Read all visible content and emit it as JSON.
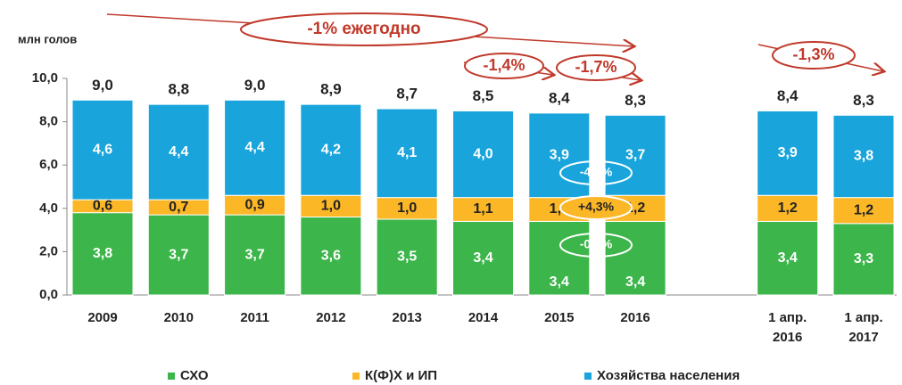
{
  "chart_data": {
    "type": "stacked_bar",
    "y_label": "млн голов",
    "categories": [
      "2009",
      "2010",
      "2011",
      "2012",
      "2013",
      "2014",
      "2015",
      "2016",
      null,
      "1 апр.\n2016",
      "1 апр.\n2017"
    ],
    "series": [
      {
        "name": "СХО",
        "color": "#3cb54a",
        "values": [
          3.8,
          3.7,
          3.7,
          3.6,
          3.5,
          3.4,
          3.4,
          3.4,
          null,
          3.4,
          3.3
        ],
        "value_labels": [
          "3,8",
          "3,7",
          "3,7",
          "3,6",
          "3,5",
          "3,4",
          "3,4",
          "3,4",
          null,
          "3,4",
          "3,3"
        ]
      },
      {
        "name": "К(Ф)Х и ИП",
        "color": "#fbb726",
        "values": [
          0.6,
          0.7,
          0.9,
          1.0,
          1.0,
          1.1,
          1.1,
          1.2,
          null,
          1.2,
          1.2
        ],
        "value_labels": [
          "0,6",
          "0,7",
          "0,9",
          "1,0",
          "1,0",
          "1,1",
          "1,1",
          "1,2",
          null,
          "1,2",
          "1,2"
        ]
      },
      {
        "name": "Хозяйства населения",
        "color": "#19a5db",
        "values": [
          4.6,
          4.4,
          4.4,
          4.2,
          4.1,
          4.0,
          3.9,
          3.7,
          null,
          3.9,
          3.8
        ],
        "value_labels": [
          "4,6",
          "4,4",
          "4,4",
          "4,2",
          "4,1",
          "4,0",
          "3,9",
          "3,7",
          null,
          "3,9",
          "3,8"
        ]
      }
    ],
    "totals": [
      9.0,
      8.8,
      9.0,
      8.9,
      8.7,
      8.5,
      8.4,
      8.3,
      null,
      8.4,
      8.3
    ],
    "total_labels": [
      "9,0",
      "8,8",
      "9,0",
      "8,9",
      "8,7",
      "8,5",
      "8,4",
      "8,3",
      null,
      "8,4",
      "8,3"
    ],
    "ylim": [
      0,
      10
    ],
    "yticks": [
      {
        "value": 0,
        "label": "0,0"
      },
      {
        "value": 2,
        "label": "2,0"
      },
      {
        "value": 4,
        "label": "4,0"
      },
      {
        "value": 6,
        "label": "6,0"
      },
      {
        "value": 8,
        "label": "8,0"
      },
      {
        "value": 10,
        "label": "10,0"
      }
    ],
    "annotations": [
      "-1% ежегодно",
      "-1,4%",
      "-1,7%",
      "-1,3%",
      "-4,3%",
      "+4,3%",
      "-0,8%"
    ],
    "legend": "bottom"
  }
}
